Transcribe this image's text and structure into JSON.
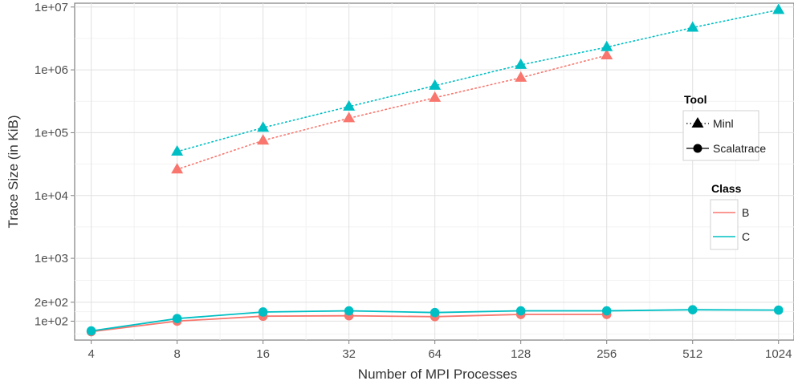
{
  "chart_data": {
    "type": "line",
    "title": "",
    "xlabel": "Number of MPI Processes",
    "ylabel": "Trace Size (in KiB)",
    "x_scale": "log2",
    "y_scale": "log10",
    "x_ticks": [
      4,
      8,
      16,
      32,
      64,
      128,
      256,
      512,
      1024
    ],
    "x_tick_labels": [
      "4",
      "8",
      "16",
      "32",
      "64",
      "128",
      "256",
      "512",
      "1024"
    ],
    "y_ticks": [
      100,
      200,
      1000,
      10000,
      100000,
      1000000,
      10000000
    ],
    "y_tick_labels": [
      "1e+02",
      "2e+02",
      "1e+03",
      "1e+04",
      "1e+05",
      "1e+06",
      "1e+07"
    ],
    "xlim": [
      3.5,
      1160
    ],
    "ylim": [
      50,
      11500000
    ],
    "grid": true,
    "legend_tool": {
      "title": "Tool",
      "items": [
        {
          "label": "Minl",
          "shape": "triangle",
          "line": "dotted"
        },
        {
          "label": "Scalatrace",
          "shape": "circle",
          "line": "solid"
        }
      ]
    },
    "legend_class": {
      "title": "Class",
      "items": [
        {
          "label": "B",
          "color": "#F8766D"
        },
        {
          "label": "C",
          "color": "#00BFC4"
        }
      ]
    },
    "series": [
      {
        "tool": "Minl",
        "class": "B",
        "color": "#F8766D",
        "shape": "triangle",
        "line": "dotted",
        "x": [
          8,
          16,
          32,
          64,
          128,
          256
        ],
        "y": [
          26000,
          75000,
          170000,
          360000,
          750000,
          1700000
        ]
      },
      {
        "tool": "Minl",
        "class": "C",
        "color": "#00BFC4",
        "shape": "triangle",
        "line": "dotted",
        "x": [
          8,
          16,
          32,
          64,
          128,
          256,
          512,
          1024
        ],
        "y": [
          50000,
          120000,
          260000,
          560000,
          1200000,
          2300000,
          4700000,
          9000000
        ]
      },
      {
        "tool": "Scalatrace",
        "class": "B",
        "color": "#F8766D",
        "shape": "circle",
        "line": "solid",
        "x": [
          4,
          8,
          16,
          32,
          64,
          128,
          256
        ],
        "y": [
          68,
          100,
          120,
          122,
          118,
          128,
          128
        ]
      },
      {
        "tool": "Scalatrace",
        "class": "C",
        "color": "#00BFC4",
        "shape": "circle",
        "line": "solid",
        "x": [
          4,
          8,
          16,
          32,
          64,
          128,
          256,
          512,
          1024
        ],
        "y": [
          70,
          110,
          140,
          146,
          137,
          146,
          146,
          152,
          150
        ]
      }
    ]
  }
}
